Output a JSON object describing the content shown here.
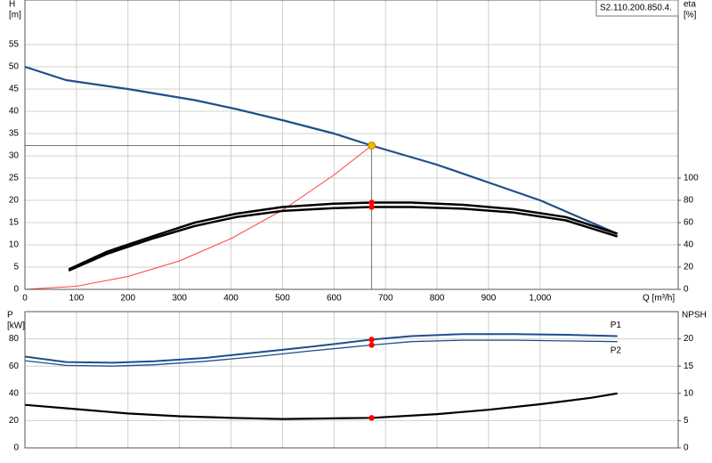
{
  "chart_data": [
    {
      "type": "line",
      "title": "S2.110.200.850.4.",
      "x_label": "Q [m³/h]",
      "y_label": "H",
      "y_unit": "[m]",
      "y2_label": "eta",
      "y2_unit": "[%]",
      "xlim": [
        0,
        1268
      ],
      "ylim": [
        0,
        65
      ],
      "y2lim": [
        0,
        260
      ],
      "grid": true,
      "xticks": [
        0,
        100,
        200,
        300,
        400,
        500,
        600,
        700,
        800,
        900,
        {
          "value": 1000,
          "label": "1,000"
        }
      ],
      "yticks": [
        0,
        5,
        10,
        15,
        20,
        25,
        30,
        35,
        40,
        45,
        50,
        55
      ],
      "y2ticks": [
        0,
        20,
        40,
        60,
        80,
        100
      ],
      "series": [
        {
          "color": "#1f4e8c",
          "width": 2.2,
          "x": [
            0,
            80,
            200,
            330,
            410,
            500,
            600,
            673,
            800,
            900,
            1000,
            1070,
            1150
          ],
          "values": [
            50,
            47,
            45,
            42.5,
            40.5,
            38,
            35,
            32.3,
            28,
            24,
            20,
            16.5,
            12.5
          ]
        },
        {
          "color": "#ff4040",
          "width": 1,
          "x": [
            0,
            100,
            200,
            300,
            400,
            500,
            600,
            673
          ],
          "values": [
            0,
            0.7,
            2.9,
            6.4,
            11.4,
            17.8,
            25.7,
            32.3
          ]
        },
        {
          "color": "#000000",
          "width": 2.5,
          "axis": "y2",
          "x": [
            85,
            160,
            250,
            330,
            410,
            500,
            600,
            673,
            750,
            850,
            950,
            1050,
            1150
          ],
          "values": [
            18,
            34,
            48,
            60,
            68,
            74,
            77,
            78,
            78,
            76,
            72,
            65,
            50
          ]
        },
        {
          "color": "#000000",
          "width": 2.5,
          "axis": "y2",
          "x": [
            85,
            160,
            250,
            330,
            410,
            500,
            600,
            673,
            750,
            850,
            950,
            1050,
            1150
          ],
          "values": [
            17,
            32,
            46,
            57,
            65,
            70.5,
            73,
            74,
            74,
            72.5,
            69,
            62,
            47.5
          ]
        }
      ],
      "operating_point": {
        "x": 673,
        "y": 32.3,
        "color": "#f5b800"
      },
      "points": [
        {
          "x": 673,
          "y": 78,
          "axis": "y2",
          "color": "#ff0000"
        },
        {
          "x": 673,
          "y": 74,
          "axis": "y2",
          "color": "#ff0000"
        }
      ]
    },
    {
      "type": "line",
      "y_label": "P",
      "y_unit": "[kW]",
      "y2_label": "NPSH",
      "xlim": [
        0,
        1268
      ],
      "ylim": [
        0,
        100
      ],
      "y2lim": [
        0,
        25
      ],
      "grid": true,
      "yticks": [
        0,
        20,
        40,
        60,
        80
      ],
      "y2ticks": [
        0,
        5,
        10,
        15,
        20
      ],
      "series": [
        {
          "name": "P1",
          "color": "#1f4e8c",
          "width": 2,
          "x": [
            0,
            80,
            170,
            250,
            350,
            450,
            550,
            673,
            750,
            850,
            950,
            1050,
            1150
          ],
          "values": [
            67,
            63,
            62.5,
            63.5,
            66,
            70,
            74,
            79.5,
            82,
            83.5,
            83.5,
            83,
            82
          ]
        },
        {
          "name": "P2",
          "color": "#1f4e8c",
          "width": 1.3,
          "x": [
            0,
            80,
            170,
            250,
            350,
            450,
            550,
            673,
            750,
            850,
            950,
            1050,
            1150
          ],
          "values": [
            64,
            60.5,
            60,
            61,
            63.5,
            67,
            71,
            75.5,
            78,
            79,
            79,
            78.5,
            78
          ]
        },
        {
          "color": "#000000",
          "width": 2.2,
          "axis": "y2",
          "x": [
            0,
            100,
            200,
            300,
            400,
            500,
            673,
            800,
            900,
            1000,
            1100,
            1150
          ],
          "values": [
            7.9,
            7.1,
            6.3,
            5.8,
            5.5,
            5.3,
            5.5,
            6.2,
            7,
            8,
            9.2,
            10
          ]
        }
      ],
      "points": [
        {
          "x": 673,
          "y": 79.5,
          "color": "#ff0000"
        },
        {
          "x": 673,
          "y": 75.5,
          "color": "#ff0000"
        },
        {
          "x": 673,
          "y": 5.5,
          "axis": "y2",
          "color": "#ff0000"
        }
      ]
    }
  ]
}
